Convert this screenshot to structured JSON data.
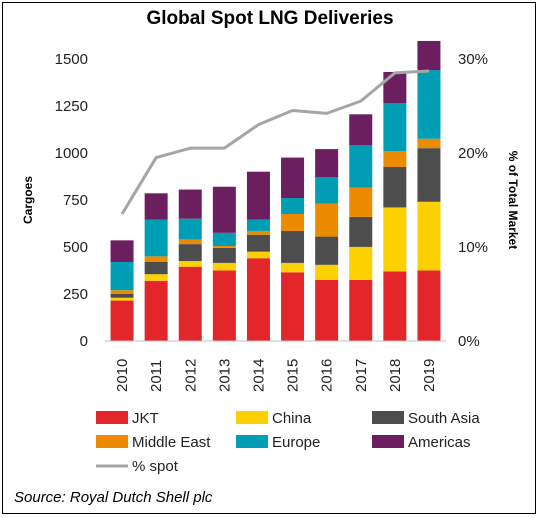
{
  "chart_data": {
    "type": "bar",
    "stacked": true,
    "title": "Global Spot LNG Deliveries",
    "ylabel": "Cargoes",
    "y2label": "% of Total Market",
    "categories": [
      "2010",
      "2011",
      "2012",
      "2013",
      "2014",
      "2015",
      "2016",
      "2017",
      "2018",
      "2019"
    ],
    "ylim": [
      0,
      1600
    ],
    "yticks": [
      "0",
      "250",
      "500",
      "750",
      "1000",
      "1250",
      "1500"
    ],
    "y2lim": [
      0,
      32
    ],
    "y2ticks": [
      "0%",
      "10%",
      "20%",
      "30%"
    ],
    "series": [
      {
        "name": "JKT",
        "color": "#e3262a",
        "values": [
          215,
          320,
          395,
          375,
          440,
          365,
          325,
          325,
          370,
          375
        ]
      },
      {
        "name": "China",
        "color": "#fdd000",
        "values": [
          15,
          35,
          30,
          40,
          35,
          50,
          80,
          175,
          340,
          365
        ]
      },
      {
        "name": "South Asia",
        "color": "#4d4d4d",
        "values": [
          20,
          65,
          90,
          80,
          90,
          170,
          150,
          160,
          215,
          285
        ]
      },
      {
        "name": "Middle East",
        "color": "#ed8b00",
        "values": [
          20,
          30,
          25,
          10,
          20,
          90,
          175,
          155,
          85,
          50
        ]
      },
      {
        "name": "Europe",
        "color": "#009eb4",
        "values": [
          150,
          195,
          110,
          70,
          60,
          85,
          140,
          225,
          255,
          365
        ]
      },
      {
        "name": "Americas",
        "color": "#6b1f5e",
        "values": [
          115,
          140,
          155,
          245,
          255,
          215,
          150,
          165,
          165,
          155
        ]
      }
    ],
    "line_series": {
      "name": "% spot",
      "color": "#a5a5a5",
      "axis": "right",
      "values": [
        13.5,
        19.5,
        20.5,
        20.5,
        23,
        24.5,
        24.2,
        25.5,
        28.5,
        28.7
      ]
    },
    "legend_position": "bottom",
    "grid": false
  },
  "source": "Source: Royal Dutch Shell plc"
}
